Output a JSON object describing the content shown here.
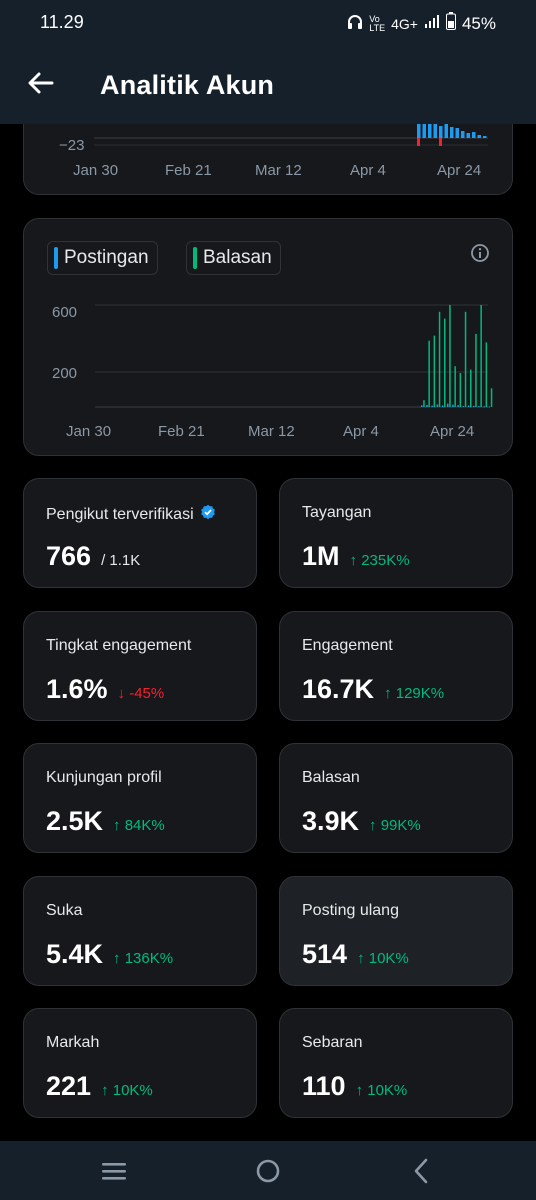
{
  "status_bar": {
    "time": "11.29",
    "network": "4G+",
    "battery": "45%"
  },
  "header": {
    "title": "Analitik Akun"
  },
  "top_chart": {
    "y_label": "−23",
    "x_labels": [
      "Jan 30",
      "Feb 21",
      "Mar 12",
      "Apr 4",
      "Apr 24"
    ]
  },
  "main_chart": {
    "legend": [
      {
        "label": "Postingan",
        "color": "#1d9bf0"
      },
      {
        "label": "Balasan",
        "color": "#00ba7c"
      }
    ],
    "y_labels": [
      "600",
      "200"
    ],
    "x_labels": [
      "Jan 30",
      "Feb 21",
      "Mar 12",
      "Apr 4",
      "Apr 24"
    ]
  },
  "chart_data": {
    "type": "bar",
    "series": [
      {
        "name": "Postingan",
        "values": [
          10,
          12,
          8,
          15,
          9,
          20,
          14,
          11,
          6,
          9,
          7,
          5,
          4,
          3
        ]
      },
      {
        "name": "Balasan",
        "values": [
          40,
          390,
          420,
          560,
          520,
          600,
          240,
          200,
          560,
          220,
          430,
          600,
          380,
          110
        ]
      }
    ],
    "ylim": [
      0,
      600
    ]
  },
  "stats": [
    {
      "label": "Pengikut terverifikasi",
      "value": "766",
      "sub": "/ 1.1K",
      "change": "",
      "direction": "",
      "verified": true
    },
    {
      "label": "Tayangan",
      "value": "1M",
      "sub": "",
      "change": "235K%",
      "direction": "up",
      "verified": false
    },
    {
      "label": "Tingkat engagement",
      "value": "1.6%",
      "sub": "",
      "change": "-45%",
      "direction": "down",
      "verified": false
    },
    {
      "label": "Engagement",
      "value": "16.7K",
      "sub": "",
      "change": "129K%",
      "direction": "up",
      "verified": false
    },
    {
      "label": "Kunjungan profil",
      "value": "2.5K",
      "sub": "",
      "change": "84K%",
      "direction": "up",
      "verified": false
    },
    {
      "label": "Balasan",
      "value": "3.9K",
      "sub": "",
      "change": "99K%",
      "direction": "up",
      "verified": false
    },
    {
      "label": "Suka",
      "value": "5.4K",
      "sub": "",
      "change": "136K%",
      "direction": "up",
      "verified": false
    },
    {
      "label": "Posting ulang",
      "value": "514",
      "sub": "",
      "change": "10K%",
      "direction": "up",
      "verified": false
    },
    {
      "label": "Markah",
      "value": "221",
      "sub": "",
      "change": "10K%",
      "direction": "up",
      "verified": false
    },
    {
      "label": "Sebaran",
      "value": "110",
      "sub": "",
      "change": "10K%",
      "direction": "up",
      "verified": false
    }
  ]
}
